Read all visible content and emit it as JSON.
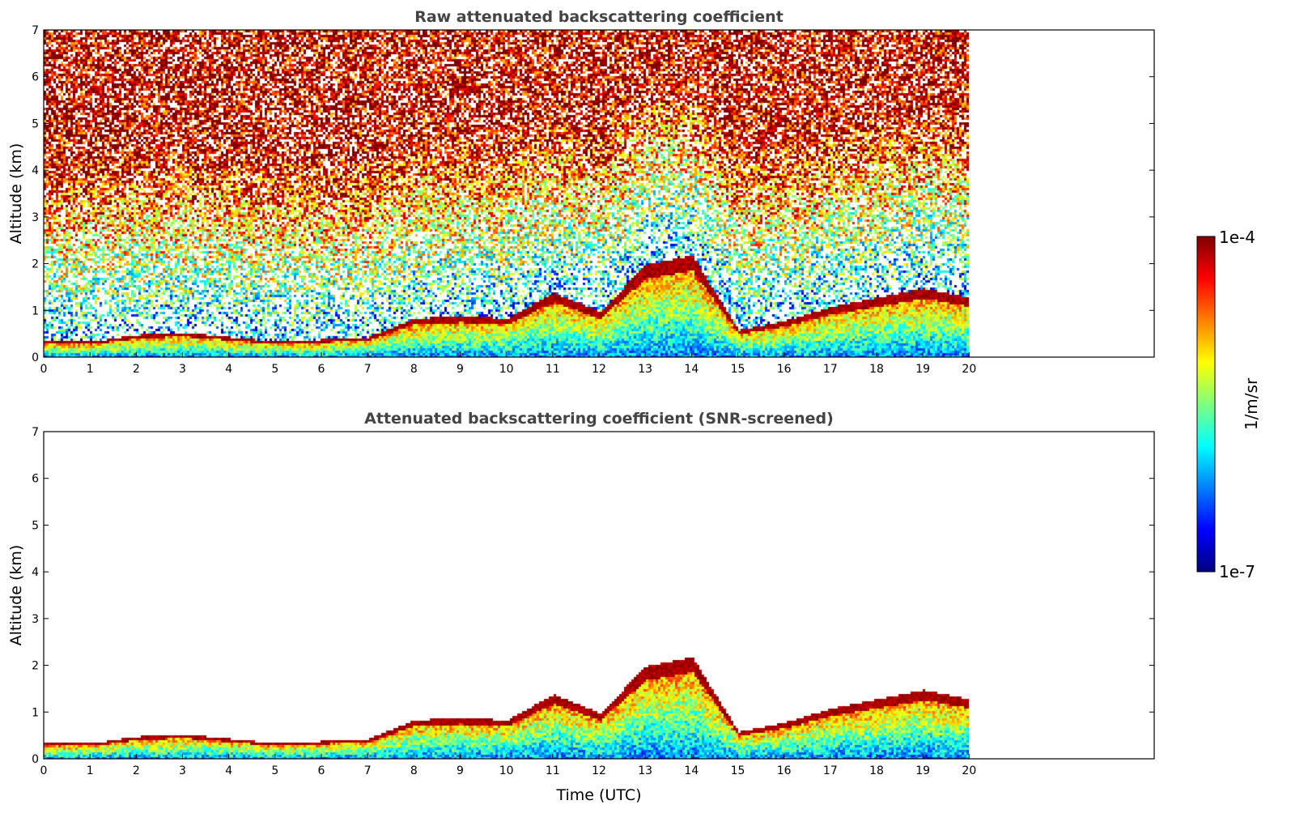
{
  "colorbar": {
    "max_label": "1e-4",
    "min_label": "1e-7",
    "unit_label": "1/m/sr",
    "scale": "log",
    "colormap": "jet",
    "colors": [
      "#00007f",
      "#0000ff",
      "#007fff",
      "#00ffff",
      "#7fff7f",
      "#ffff00",
      "#ff7f00",
      "#ff0000",
      "#7f0000"
    ]
  },
  "chart_data": [
    {
      "type": "heatmap",
      "title": "Raw attenuated backscattering coefficient",
      "xlabel": "",
      "ylabel": "Altitude (km)",
      "xlim": [
        0,
        24
      ],
      "ylim": [
        0,
        7
      ],
      "x_ticks": [
        "0",
        "1",
        "2",
        "3",
        "4",
        "5",
        "6",
        "7",
        "8",
        "9",
        "10",
        "11",
        "12",
        "13",
        "14",
        "15",
        "16",
        "17",
        "18",
        "19",
        "20"
      ],
      "y_ticks": [
        "0",
        "1",
        "2",
        "3",
        "4",
        "5",
        "6",
        "7"
      ],
      "data_end_hour": 20,
      "boundary_layer_top_km": [
        [
          0,
          0.35
        ],
        [
          1,
          0.35
        ],
        [
          2,
          0.5
        ],
        [
          3,
          0.55
        ],
        [
          4,
          0.45
        ],
        [
          5,
          0.35
        ],
        [
          6,
          0.4
        ],
        [
          7,
          0.45
        ],
        [
          8,
          0.85
        ],
        [
          9,
          0.9
        ],
        [
          10,
          0.85
        ],
        [
          11,
          1.4
        ],
        [
          12,
          1.0
        ],
        [
          13,
          2.0
        ],
        [
          14,
          2.2
        ],
        [
          15,
          0.6
        ],
        [
          16,
          0.8
        ],
        [
          17,
          1.1
        ],
        [
          18,
          1.3
        ],
        [
          19,
          1.5
        ],
        [
          20,
          1.3
        ]
      ]
    },
    {
      "type": "heatmap",
      "title": "Attenuated backscattering coefficient (SNR-screened)",
      "xlabel": "Time (UTC)",
      "ylabel": "Altitude (km)",
      "xlim": [
        0,
        24
      ],
      "ylim": [
        0,
        7
      ],
      "x_ticks": [
        "0",
        "1",
        "2",
        "3",
        "4",
        "5",
        "6",
        "7",
        "8",
        "9",
        "10",
        "11",
        "12",
        "13",
        "14",
        "15",
        "16",
        "17",
        "18",
        "19",
        "20"
      ],
      "y_ticks": [
        "0",
        "1",
        "2",
        "3",
        "4",
        "5",
        "6",
        "7"
      ],
      "data_end_hour": 20,
      "boundary_layer_top_km": [
        [
          0,
          0.35
        ],
        [
          1,
          0.35
        ],
        [
          2,
          0.5
        ],
        [
          3,
          0.55
        ],
        [
          4,
          0.45
        ],
        [
          5,
          0.35
        ],
        [
          6,
          0.4
        ],
        [
          7,
          0.45
        ],
        [
          8,
          0.85
        ],
        [
          9,
          0.9
        ],
        [
          10,
          0.85
        ],
        [
          11,
          1.4
        ],
        [
          12,
          1.0
        ],
        [
          13,
          2.0
        ],
        [
          14,
          2.2
        ],
        [
          15,
          0.6
        ],
        [
          16,
          0.8
        ],
        [
          17,
          1.1
        ],
        [
          18,
          1.3
        ],
        [
          19,
          1.5
        ],
        [
          20,
          1.3
        ]
      ]
    }
  ]
}
